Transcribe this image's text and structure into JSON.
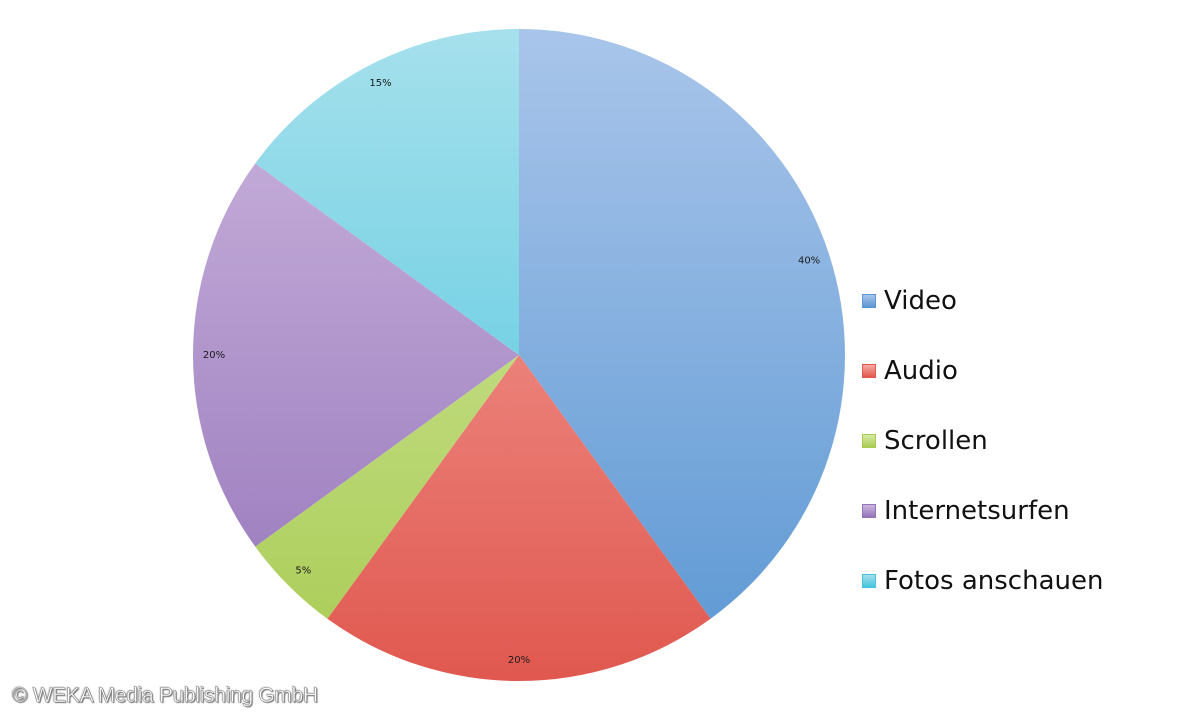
{
  "chart_data": {
    "type": "pie",
    "title": "",
    "categories": [
      "Video",
      "Audio",
      "Scrollen",
      "Internetsurfen",
      "Fotos anschauen"
    ],
    "values": [
      40,
      20,
      5,
      20,
      15
    ],
    "data_labels": [
      "40%",
      "20%",
      "5%",
      "20%",
      "15%"
    ],
    "colors": [
      {
        "light": "#a9c5ea",
        "dark": "#5b97d3"
      },
      {
        "light": "#f6aaa5",
        "dark": "#e0584f"
      },
      {
        "light": "#d5e8a4",
        "dark": "#a9cc55"
      },
      {
        "light": "#cdb7df",
        "dark": "#9474b9"
      },
      {
        "light": "#a6e0ec",
        "dark": "#47c4dd"
      }
    ],
    "start_angle": "12 o'clock",
    "direction": "clockwise",
    "legend_position": "right"
  },
  "copyright": "© WEKA Media Publishing GmbH"
}
